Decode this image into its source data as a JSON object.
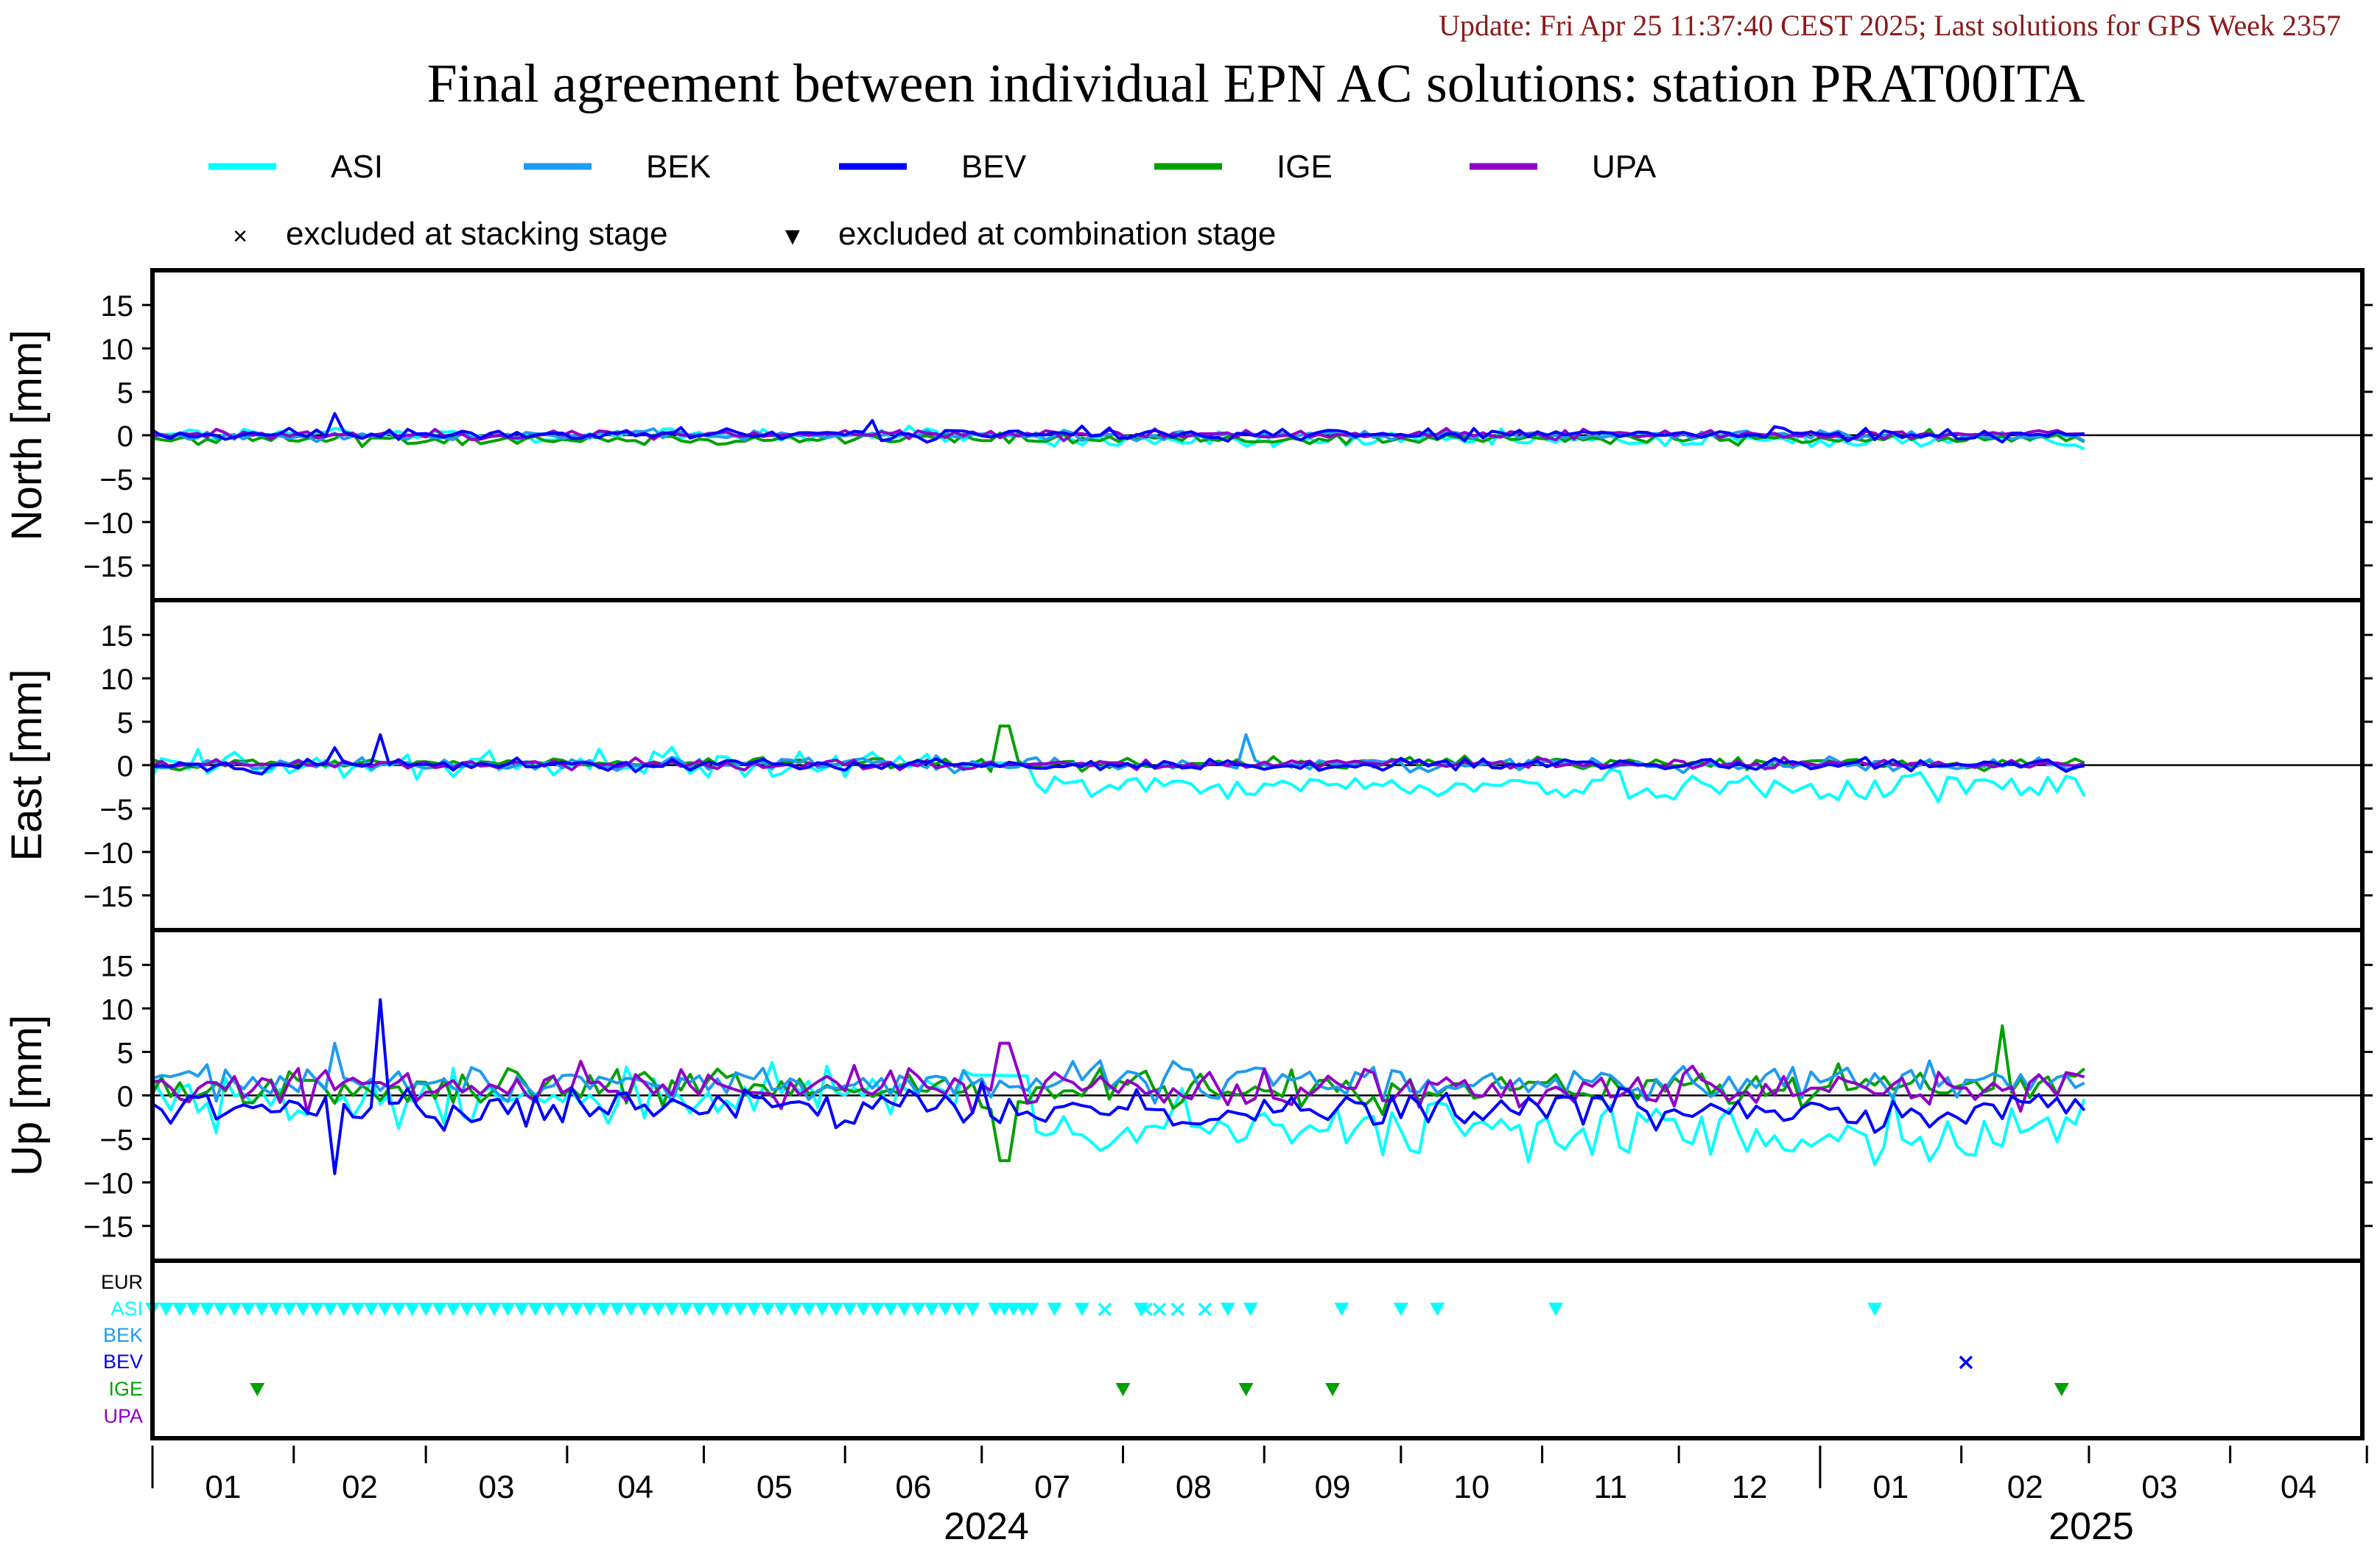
{
  "header": {
    "update_line": "Update: Fri Apr 25 11:37:40 CEST 2025; Last solutions for GPS Week 2357",
    "title": "Final agreement between individual EPN AC solutions: station PRAT00ITA"
  },
  "legend": {
    "series": [
      {
        "name": "ASI",
        "color": "#00ffff"
      },
      {
        "name": "BEK",
        "color": "#1e9bf0"
      },
      {
        "name": "BEV",
        "color": "#0000ff"
      },
      {
        "name": "IGE",
        "color": "#00a000"
      },
      {
        "name": "UPA",
        "color": "#9000c8"
      }
    ],
    "markers": [
      {
        "symbol": "×",
        "label": "excluded at stacking stage"
      },
      {
        "symbol": "▼",
        "label": "excluded at combination stage"
      }
    ]
  },
  "chart_data": {
    "type": "line",
    "x_axis": {
      "start": "2024-01-01",
      "end": "2025-04-30",
      "month_labels": [
        "01",
        "02",
        "03",
        "04",
        "05",
        "06",
        "07",
        "08",
        "09",
        "10",
        "11",
        "12",
        "01",
        "02",
        "03",
        "04"
      ],
      "year_labels": [
        "2024",
        "2025"
      ]
    },
    "panels": [
      {
        "ylabel": "North [mm]",
        "ylim": [
          -19,
          19
        ],
        "yticks": [
          15,
          10,
          5,
          0,
          -5,
          -10,
          -15
        ],
        "series_profile": {
          "ASI": {
            "mean_before_jul": 0,
            "mean_after_jul": -0.6,
            "noise": 0.7
          },
          "BEK": {
            "mean": 0,
            "noise": 0.4
          },
          "BEV": {
            "mean": 0.1,
            "noise": 0.5,
            "spikes": [
              {
                "date": "2024-02-10",
                "value": 2.5
              },
              {
                "date": "2024-06-07",
                "value": 1.7
              }
            ]
          },
          "IGE": {
            "mean": -0.4,
            "noise": 0.5
          },
          "UPA": {
            "mean": 0.1,
            "noise": 0.4
          }
        }
      },
      {
        "ylabel": "East [mm]",
        "ylim": [
          -19,
          19
        ],
        "yticks": [
          15,
          10,
          5,
          0,
          -5,
          -10,
          -15
        ],
        "series_profile": {
          "ASI": {
            "mean_before_jul": 0,
            "mean_after_jul": -2.4,
            "noise": 1.2
          },
          "BEK": {
            "mean": 0.1,
            "noise": 0.5,
            "spikes": [
              {
                "date": "2024-08-28",
                "value": 3.5
              }
            ]
          },
          "BEV": {
            "mean": 0,
            "noise": 0.5,
            "spikes": [
              {
                "date": "2024-02-10",
                "value": 2.0
              },
              {
                "date": "2024-02-20",
                "value": 3.5
              }
            ]
          },
          "IGE": {
            "mean": 0.2,
            "noise": 0.5,
            "spikes": [
              {
                "date": "2024-07-06",
                "value": 4.5
              }
            ]
          },
          "UPA": {
            "mean": 0.1,
            "noise": 0.4
          }
        }
      },
      {
        "ylabel": "Up [mm]",
        "ylim": [
          -19,
          19
        ],
        "yticks": [
          15,
          10,
          5,
          0,
          -5,
          -10,
          -15
        ],
        "series_profile": {
          "ASI": {
            "mean_before_jul": 0,
            "mean_after_jul": -4,
            "noise": 2.5
          },
          "BEK": {
            "mean": 1.5,
            "noise": 1.5,
            "spikes": [
              {
                "date": "2024-02-10",
                "value": 6
              }
            ]
          },
          "BEV": {
            "mean": -1.5,
            "noise": 1.5,
            "spikes": [
              {
                "date": "2024-02-10",
                "value": -9
              },
              {
                "date": "2024-02-20",
                "value": 11
              }
            ]
          },
          "IGE": {
            "mean": 0.8,
            "noise": 1.5,
            "spikes": [
              {
                "date": "2024-07-06",
                "value": -7.5
              },
              {
                "date": "2025-02-10",
                "value": 8
              }
            ]
          },
          "UPA": {
            "mean": 1,
            "noise": 1.5,
            "spikes": [
              {
                "date": "2024-07-06",
                "value": 6
              }
            ]
          }
        }
      }
    ],
    "exclusions": {
      "rows": [
        "EUR",
        "ASI",
        "BEK",
        "BEV",
        "IGE",
        "UPA"
      ],
      "row_colors": [
        "#000000",
        "#00ffff",
        "#1e9bf0",
        "#0000ff",
        "#00a000",
        "#9000c8"
      ],
      "ASI": {
        "combination_continuous_until": "2024-06-30",
        "combination": [
          "2024-07-04",
          "2024-07-06",
          "2024-07-08",
          "2024-07-10",
          "2024-07-12",
          "2024-07-17",
          "2024-07-23",
          "2024-08-05",
          "2024-08-24",
          "2024-08-29",
          "2024-09-18",
          "2024-10-01",
          "2024-10-09",
          "2024-11-04",
          "2025-01-13"
        ],
        "stacking": [
          "2024-07-28",
          "2024-08-06",
          "2024-08-09",
          "2024-08-13",
          "2024-08-19"
        ]
      },
      "BEV": {
        "stacking": [
          "2025-02-02"
        ]
      },
      "IGE": {
        "combination": [
          "2024-01-24",
          "2024-08-01",
          "2024-08-28",
          "2024-09-16",
          "2025-02-23"
        ]
      }
    }
  }
}
